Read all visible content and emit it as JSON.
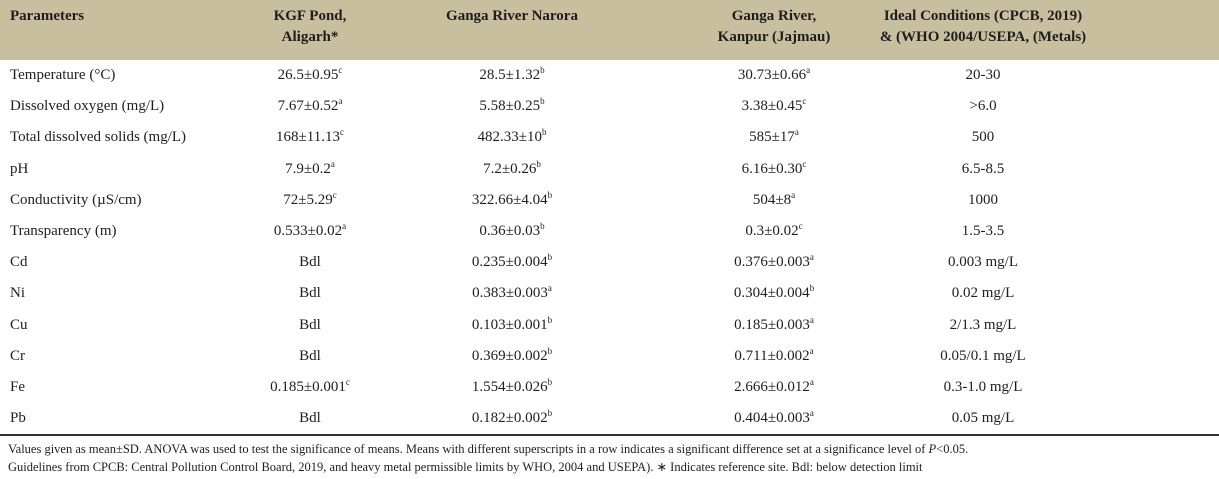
{
  "header": {
    "parameters": "Parameters",
    "kgf": [
      "KGF Pond,",
      "Aligarh*"
    ],
    "narora": [
      "Ganga River Narora"
    ],
    "kanpur": [
      "Ganga River,",
      "Kanpur (Jajmau)"
    ],
    "ideal": [
      "Ideal Conditions (CPCB, 2019)",
      "& (WHO 2004/USEPA, (Metals)"
    ]
  },
  "rows": [
    {
      "param": " Temperature (°C)",
      "kgf": "26.5±0.95",
      "kgf_sup": "c",
      "narora": "28.5±1.32",
      "narora_sup": "b",
      "kanpur": "30.73±0.66",
      "kanpur_sup": "a",
      "ideal": "20-30"
    },
    {
      "param": "Dissolved oxygen (mg/L)",
      "kgf": "7.67±0.52",
      "kgf_sup": "a",
      "narora": "5.58±0.25",
      "narora_sup": "b",
      "kanpur": "3.38±0.45",
      "kanpur_sup": "c",
      "ideal": ">6.0"
    },
    {
      "param": "Total dissolved solids (mg/L)",
      "kgf": "168±11.13",
      "kgf_sup": "c",
      "narora": "482.33±10",
      "narora_sup": "b",
      "kanpur": "585±17",
      "kanpur_sup": "a",
      "ideal": "500"
    },
    {
      "param": "pH",
      "kgf": "7.9±0.2",
      "kgf_sup": "a",
      "narora": "7.2±0.26",
      "narora_sup": "b",
      "kanpur": "6.16±0.30",
      "kanpur_sup": "c",
      "ideal": "6.5-8.5"
    },
    {
      "param": "Conductivity (µS/cm)",
      "kgf": "72±5.29",
      "kgf_sup": "c",
      "narora": "322.66±4.04",
      "narora_sup": "b",
      "kanpur": "504±8",
      "kanpur_sup": "a",
      "ideal": "1000"
    },
    {
      "param": "Transparency (m)",
      "kgf": "0.533±0.02",
      "kgf_sup": "a",
      "narora": "0.36±0.03",
      "narora_sup": "b",
      "kanpur": "0.3±0.02",
      "kanpur_sup": "c",
      "ideal": "1.5-3.5"
    },
    {
      "param": " Cd",
      "kgf": "Bdl",
      "kgf_sup": "",
      "narora": "0.235±0.004",
      "narora_sup": "b",
      "kanpur": "0.376±0.003",
      "kanpur_sup": "a",
      "ideal": "0.003 mg/L"
    },
    {
      "param": " Ni",
      "kgf": "Bdl",
      "kgf_sup": "",
      "narora": "0.383±0.003",
      "narora_sup": "a",
      "kanpur": "0.304±0.004",
      "kanpur_sup": "b",
      "ideal": "0.02 mg/L"
    },
    {
      "param": " Cu",
      "kgf": "Bdl",
      "kgf_sup": "",
      "narora": "0.103±0.001",
      "narora_sup": "b",
      "kanpur": "0.185±0.003",
      "kanpur_sup": "a",
      "ideal": "2/1.3 mg/L"
    },
    {
      "param": " Cr",
      "kgf": "Bdl",
      "kgf_sup": "",
      "narora": "0.369±0.002",
      "narora_sup": "b",
      "kanpur": "0.711±0.002",
      "kanpur_sup": "a",
      "ideal": "0.05/0.1 mg/L"
    },
    {
      "param": " Fe",
      "kgf": "0.185±0.001",
      "kgf_sup": "c",
      "narora": "1.554±0.026",
      "narora_sup": "b",
      "kanpur": "2.666±0.012",
      "kanpur_sup": "a",
      "ideal": "0.3-1.0 mg/L"
    },
    {
      "param": " Pb",
      "kgf": "Bdl",
      "kgf_sup": "",
      "narora": "0.182±0.002",
      "narora_sup": "b",
      "kanpur": "0.404±0.003",
      "kanpur_sup": "a",
      "ideal": "0.05 mg/L"
    }
  ],
  "footnotes": {
    "line1_a": "Values given as mean±SD. ANOVA was used to test the significance of means. Means with different superscripts in a row indicates a significant difference set at a significance level of ",
    "line1_p": "P",
    "line1_b": "<0.05.",
    "line2": "Guidelines from CPCB: Central Pollution Control Board, 2019, and heavy metal permissible limits by WHO, 2004 and USEPA). ∗ Indicates reference site. Bdl: below detection limit"
  }
}
